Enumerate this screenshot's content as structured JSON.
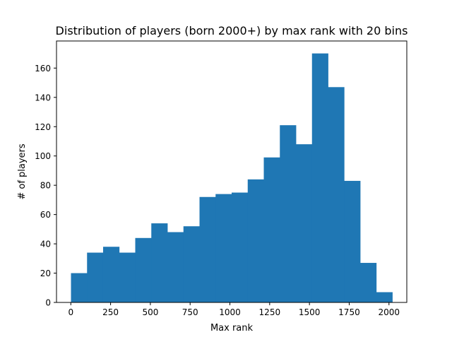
{
  "chart_data": {
    "type": "bar",
    "title": "Distribution of players (born 2000+) by max rank with 20 bins",
    "xlabel": "Max rank",
    "ylabel": "# of players",
    "bin_edges": [
      1,
      102,
      203,
      304,
      405,
      506,
      607,
      708,
      809,
      910,
      1011,
      1112,
      1213,
      1314,
      1415,
      1516,
      1617,
      1718,
      1819,
      1920,
      2021
    ],
    "values": [
      20,
      34,
      38,
      34,
      44,
      54,
      48,
      52,
      72,
      74,
      75,
      84,
      99,
      121,
      108,
      170,
      147,
      83,
      27,
      7
    ],
    "xlim": [
      -90,
      2112
    ],
    "ylim": [
      0,
      178.5
    ],
    "xticks": [
      0,
      250,
      500,
      750,
      1000,
      1250,
      1500,
      1750,
      2000
    ],
    "yticks": [
      0,
      20,
      40,
      60,
      80,
      100,
      120,
      140,
      160
    ],
    "color": "#1f77b4",
    "grid": false,
    "legend": "none"
  }
}
